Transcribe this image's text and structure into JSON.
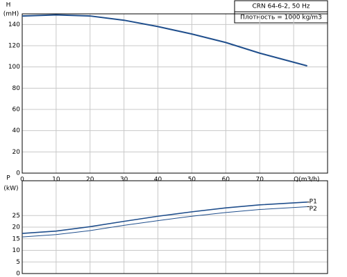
{
  "chart_data": [
    {
      "type": "line",
      "y_label": "H",
      "y_unit": "(mH)",
      "annotations": [
        "CRN 64-6-2, 50 Hz",
        "Плотность = 1000 kg/m3"
      ],
      "x": [
        0,
        10,
        20,
        30,
        40,
        50,
        60,
        70,
        84
      ],
      "values": [
        148,
        149,
        148,
        144,
        138,
        131,
        123,
        113,
        101
      ],
      "color": "#1f4e8c",
      "xlim": [
        0,
        90
      ],
      "xticks": [
        0,
        10,
        20,
        30,
        40,
        50,
        60,
        70,
        {
          "value": 80,
          "label": "Q(m3/h)"
        }
      ],
      "ylim": [
        0,
        150
      ],
      "yticks": [
        0,
        20,
        40,
        60,
        80,
        100,
        120,
        140
      ],
      "grid": true
    },
    {
      "type": "line",
      "y_label": "P",
      "y_unit": "(kW)",
      "x": [
        0,
        10,
        20,
        30,
        40,
        50,
        60,
        70,
        84
      ],
      "series": [
        {
          "name": "P1",
          "color": "#1f4e8c",
          "values": [
            17.3,
            18.3,
            20.2,
            22.5,
            24.7,
            26.6,
            28.3,
            29.6,
            30.8
          ]
        },
        {
          "name": "P2",
          "color": "#1f4e8c",
          "values": [
            15.8,
            16.8,
            18.5,
            20.8,
            22.8,
            24.7,
            26.3,
            27.6,
            28.8
          ]
        }
      ],
      "xlim": [
        0,
        90
      ],
      "xticks": [
        0,
        10,
        20,
        30,
        40,
        50,
        60,
        70,
        80
      ],
      "ylim": [
        0,
        40
      ],
      "yticks": [
        0,
        5,
        10,
        15,
        20,
        25
      ],
      "grid": true
    }
  ]
}
